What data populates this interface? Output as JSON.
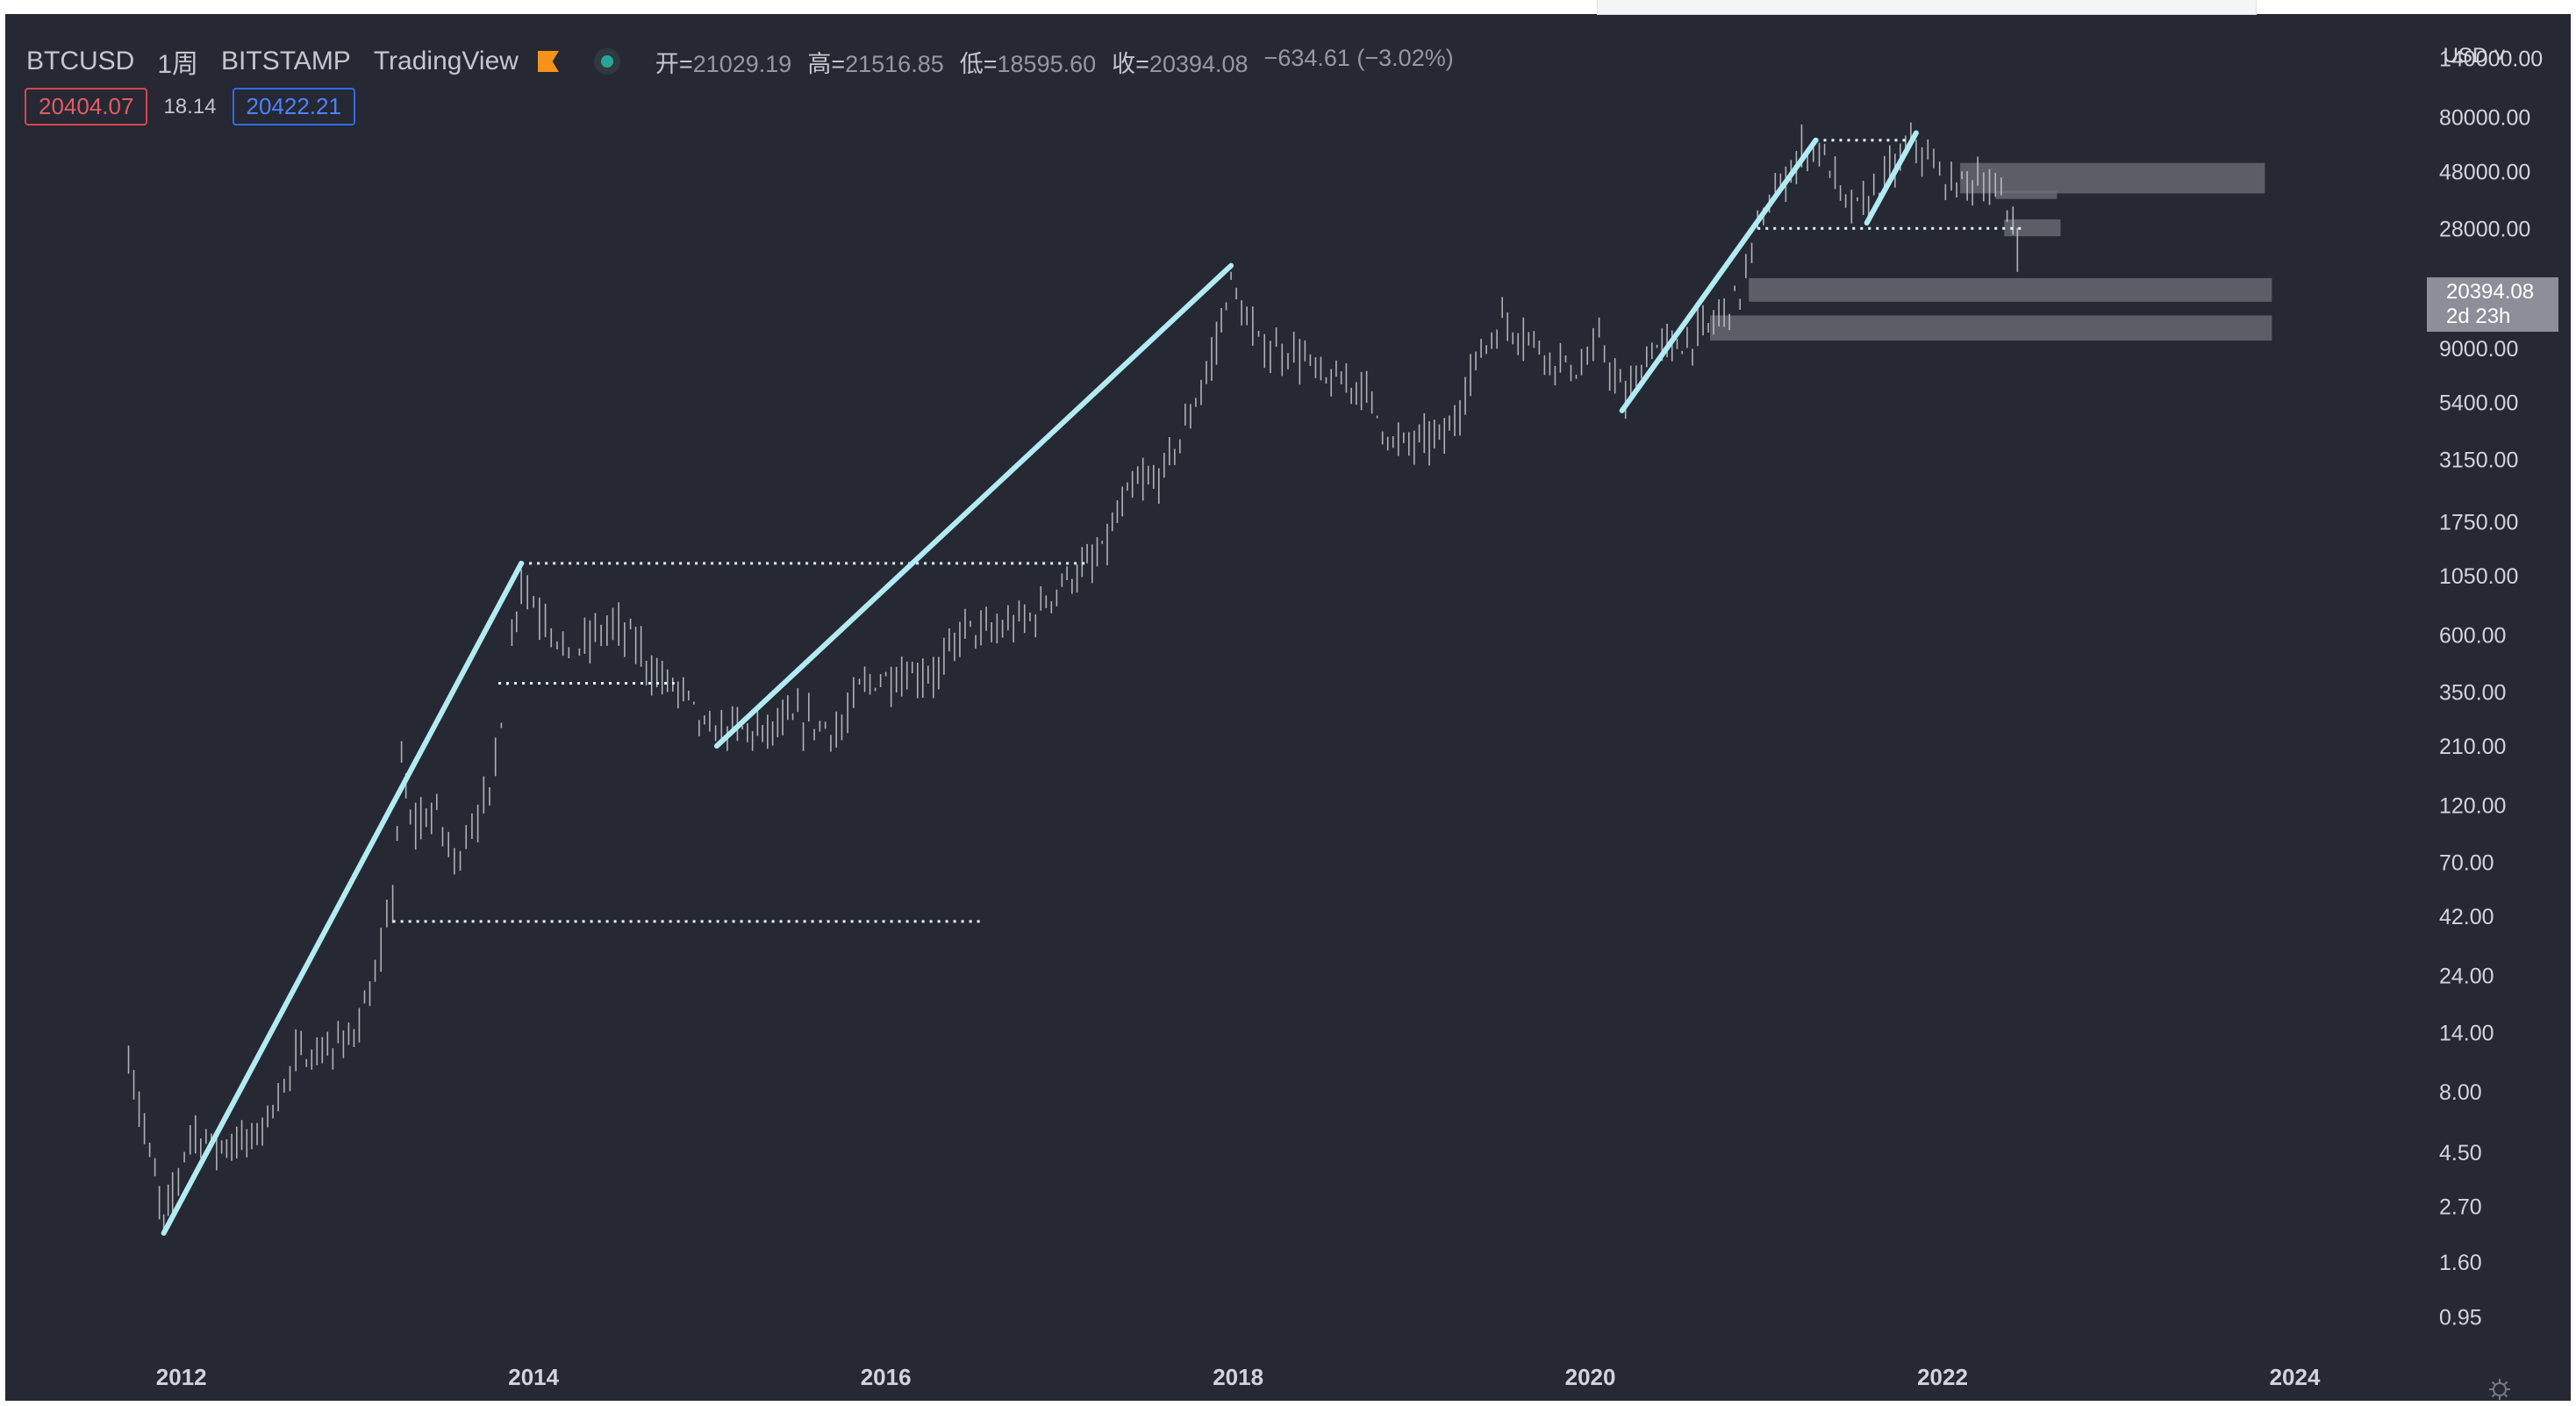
{
  "header": {
    "symbol": "BTCUSD",
    "timeframe": "1周",
    "exchange": "BITSTAMP",
    "source": "TradingView",
    "ohlc": {
      "open_label": "开=",
      "open": "21029.19",
      "high_label": "高=",
      "high": "21516.85",
      "low_label": "低=",
      "low": "18595.60",
      "close_label": "收=",
      "close": "20394.08",
      "change": "−634.61 (−3.02%)"
    },
    "bid": "20404.07",
    "spread": "18.14",
    "ask": "20422.21"
  },
  "price_scale": {
    "currency": "USD",
    "last_price": "20394.08",
    "countdown": "2d 23h"
  },
  "colors": {
    "background": "#262933",
    "trendline": "#b2ebf2",
    "candles": "#c7c9cf",
    "zones": "#6e7079",
    "bid": "#e35b66",
    "ask": "#4c82ff",
    "live_dot": "#26a69a"
  },
  "chart_data": {
    "type": "line",
    "title": "",
    "xlabel": "",
    "ylabel": "",
    "log_scale": true,
    "grid": false,
    "xlim": [
      2011.0,
      2024.7
    ],
    "ylim": [
      0.6,
      180000
    ],
    "x_ticks": [
      {
        "label": "2012",
        "value": 2012
      },
      {
        "label": "2014",
        "value": 2014
      },
      {
        "label": "2016",
        "value": 2016
      },
      {
        "label": "2018",
        "value": 2018
      },
      {
        "label": "2020",
        "value": 2020
      },
      {
        "label": "2022",
        "value": 2022
      },
      {
        "label": "2024",
        "value": 2024
      }
    ],
    "y_ticks": [
      {
        "label": "140000.00",
        "value": 140000
      },
      {
        "label": "80000.00",
        "value": 80000
      },
      {
        "label": "48000.00",
        "value": 48000
      },
      {
        "label": "28000.00",
        "value": 28000
      },
      {
        "label": "9000.00",
        "value": 9000
      },
      {
        "label": "5400.00",
        "value": 5400
      },
      {
        "label": "3150.00",
        "value": 3150
      },
      {
        "label": "1750.00",
        "value": 1750
      },
      {
        "label": "1050.00",
        "value": 1050
      },
      {
        "label": "600.00",
        "value": 600
      },
      {
        "label": "350.00",
        "value": 350
      },
      {
        "label": "210.00",
        "value": 210
      },
      {
        "label": "120.00",
        "value": 120
      },
      {
        "label": "70.00",
        "value": 70
      },
      {
        "label": "42.00",
        "value": 42
      },
      {
        "label": "24.00",
        "value": 24
      },
      {
        "label": "14.00",
        "value": 14
      },
      {
        "label": "8.00",
        "value": 8
      },
      {
        "label": "4.50",
        "value": 4.5
      },
      {
        "label": "2.70",
        "value": 2.7
      },
      {
        "label": "1.60",
        "value": 1.6
      },
      {
        "label": "0.95",
        "value": 0.95
      }
    ],
    "series": [
      {
        "style": "weekly-candles",
        "points": [
          [
            2011.7,
            11
          ],
          [
            2011.85,
            3.5
          ],
          [
            2011.9,
            2.3
          ],
          [
            2011.95,
            3.0
          ],
          [
            2012.05,
            5.5
          ],
          [
            2012.2,
            4.8
          ],
          [
            2012.4,
            5.0
          ],
          [
            2012.55,
            7.5
          ],
          [
            2012.65,
            11
          ],
          [
            2012.8,
            11.5
          ],
          [
            2012.95,
            13
          ],
          [
            2013.1,
            22
          ],
          [
            2013.2,
            50
          ],
          [
            2013.25,
            180
          ],
          [
            2013.3,
            100
          ],
          [
            2013.45,
            110
          ],
          [
            2013.55,
            70
          ],
          [
            2013.65,
            100
          ],
          [
            2013.75,
            130
          ],
          [
            2013.85,
            400
          ],
          [
            2013.93,
            1050
          ],
          [
            2014.0,
            800
          ],
          [
            2014.1,
            650
          ],
          [
            2014.2,
            480
          ],
          [
            2014.35,
            600
          ],
          [
            2014.45,
            650
          ],
          [
            2014.55,
            590
          ],
          [
            2014.7,
            400
          ],
          [
            2014.85,
            350
          ],
          [
            2015.0,
            230
          ],
          [
            2015.1,
            250
          ],
          [
            2015.3,
            235
          ],
          [
            2015.5,
            270
          ],
          [
            2015.75,
            240
          ],
          [
            2015.85,
            360
          ],
          [
            2016.0,
            400
          ],
          [
            2016.3,
            420
          ],
          [
            2016.45,
            650
          ],
          [
            2016.6,
            600
          ],
          [
            2016.85,
            720
          ],
          [
            2017.0,
            980
          ],
          [
            2017.2,
            1200
          ],
          [
            2017.4,
            2400
          ],
          [
            2017.55,
            2600
          ],
          [
            2017.7,
            4200
          ],
          [
            2017.85,
            8000
          ],
          [
            2017.96,
            17000
          ],
          [
            2018.05,
            11000
          ],
          [
            2018.15,
            9000
          ],
          [
            2018.35,
            8500
          ],
          [
            2018.5,
            6500
          ],
          [
            2018.7,
            6400
          ],
          [
            2018.88,
            3600
          ],
          [
            2019.0,
            3700
          ],
          [
            2019.2,
            4000
          ],
          [
            2019.35,
            8000
          ],
          [
            2019.5,
            11500
          ],
          [
            2019.65,
            10000
          ],
          [
            2019.8,
            8000
          ],
          [
            2019.95,
            7200
          ],
          [
            2020.05,
            9500
          ],
          [
            2020.2,
            5500
          ],
          [
            2020.35,
            9000
          ],
          [
            2020.55,
            9300
          ],
          [
            2020.7,
            11500
          ],
          [
            2020.85,
            15000
          ],
          [
            2020.95,
            28000
          ],
          [
            2021.05,
            38000
          ],
          [
            2021.2,
            57000
          ],
          [
            2021.3,
            60000
          ],
          [
            2021.45,
            35000
          ],
          [
            2021.55,
            34000
          ],
          [
            2021.7,
            47000
          ],
          [
            2021.85,
            64000
          ],
          [
            2021.95,
            48000
          ],
          [
            2022.05,
            42000
          ],
          [
            2022.2,
            45000
          ],
          [
            2022.3,
            39000
          ],
          [
            2022.4,
            30000
          ],
          [
            2022.45,
            20394
          ]
        ]
      }
    ],
    "trendlines": [
      {
        "from": [
          2011.9,
          2.1
        ],
        "to": [
          2013.93,
          1180
        ]
      },
      {
        "from": [
          2015.04,
          210
        ],
        "to": [
          2017.96,
          19700
        ]
      },
      {
        "from": [
          2020.18,
          5000
        ],
        "to": [
          2021.28,
          64500
        ]
      },
      {
        "from": [
          2021.57,
          29500
        ],
        "to": [
          2021.85,
          69000
        ]
      }
    ],
    "horizontal_levels": [
      {
        "value": 1180,
        "x_from": 2013.93,
        "x_to": 2017.15
      },
      {
        "value": 380,
        "x_from": 2013.8,
        "x_to": 2014.8
      },
      {
        "value": 40,
        "x_from": 2013.2,
        "x_to": 2016.55
      },
      {
        "value": 64500,
        "x_from": 2021.28,
        "x_to": 2021.85
      },
      {
        "value": 28000,
        "x_from": 2020.95,
        "x_to": 2022.45
      }
    ],
    "zones": [
      {
        "y_range": [
          39000,
          52000
        ],
        "x_range": [
          2022.1,
          2023.83
        ]
      },
      {
        "y_range": [
          37000,
          40000
        ],
        "x_range": [
          2022.3,
          2022.65
        ]
      },
      {
        "y_range": [
          26000,
          30500
        ],
        "x_range": [
          2022.35,
          2022.67
        ]
      },
      {
        "y_range": [
          14000,
          17500
        ],
        "x_range": [
          2020.9,
          2023.87
        ]
      },
      {
        "y_range": [
          9700,
          12300
        ],
        "x_range": [
          2020.68,
          2023.87
        ]
      }
    ]
  }
}
